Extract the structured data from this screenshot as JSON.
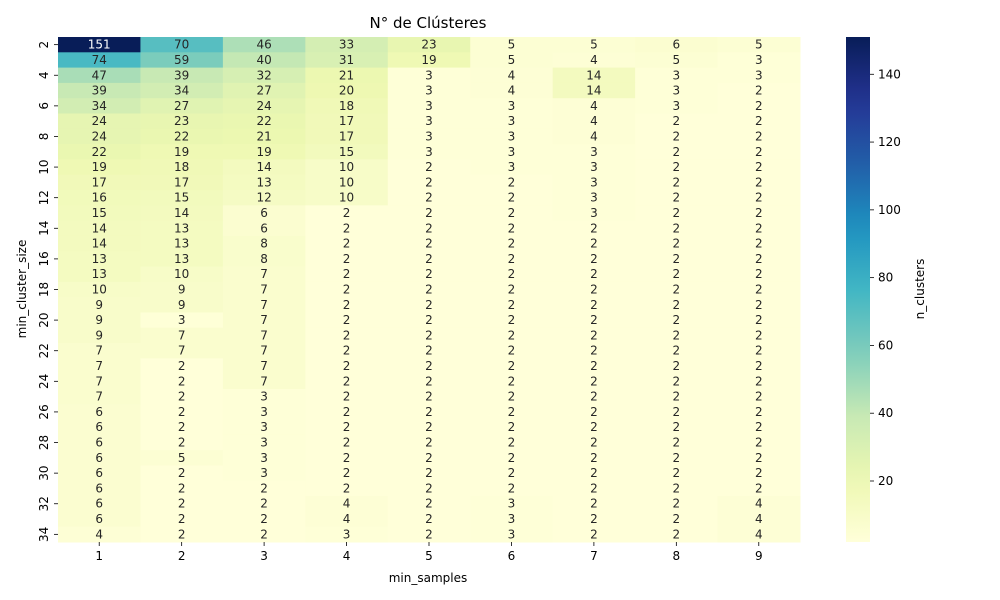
{
  "chart_data": {
    "type": "heatmap",
    "title": "N° de Clústeres",
    "xlabel": "min_samples",
    "ylabel": "min_cluster_size",
    "colorbar_label": "n_clusters",
    "colormap": "YlGnBu",
    "vmin": 2,
    "vmax": 151,
    "x_categories": [
      "1",
      "2",
      "3",
      "4",
      "5",
      "6",
      "7",
      "8",
      "9"
    ],
    "y_categories": [
      "2",
      "3",
      "4",
      "5",
      "6",
      "7",
      "8",
      "9",
      "10",
      "11",
      "12",
      "13",
      "14",
      "15",
      "16",
      "17",
      "18",
      "19",
      "20",
      "21",
      "22",
      "23",
      "24",
      "25",
      "26",
      "27",
      "28",
      "29",
      "30",
      "31",
      "32",
      "33",
      "34"
    ],
    "y_tick_labels_shown": [
      "2",
      "4",
      "6",
      "8",
      "10",
      "12",
      "14",
      "16",
      "18",
      "20",
      "22",
      "24",
      "26",
      "28",
      "30",
      "32",
      "34"
    ],
    "colorbar_ticks": [
      "20",
      "40",
      "60",
      "80",
      "100",
      "120",
      "140"
    ],
    "values": [
      [
        151,
        70,
        46,
        33,
        23,
        5,
        5,
        6,
        5
      ],
      [
        74,
        59,
        40,
        31,
        19,
        5,
        4,
        5,
        3
      ],
      [
        47,
        39,
        32,
        21,
        3,
        4,
        14,
        3,
        3
      ],
      [
        39,
        34,
        27,
        20,
        3,
        4,
        14,
        3,
        2
      ],
      [
        34,
        27,
        24,
        18,
        3,
        3,
        4,
        3,
        2
      ],
      [
        24,
        23,
        22,
        17,
        3,
        3,
        4,
        2,
        2
      ],
      [
        24,
        22,
        21,
        17,
        3,
        3,
        4,
        2,
        2
      ],
      [
        22,
        19,
        19,
        15,
        3,
        3,
        3,
        2,
        2
      ],
      [
        19,
        18,
        14,
        10,
        2,
        3,
        3,
        2,
        2
      ],
      [
        17,
        17,
        13,
        10,
        2,
        2,
        3,
        2,
        2
      ],
      [
        16,
        15,
        12,
        10,
        2,
        2,
        3,
        2,
        2
      ],
      [
        15,
        14,
        6,
        2,
        2,
        2,
        3,
        2,
        2
      ],
      [
        14,
        13,
        6,
        2,
        2,
        2,
        2,
        2,
        2
      ],
      [
        14,
        13,
        8,
        2,
        2,
        2,
        2,
        2,
        2
      ],
      [
        13,
        13,
        8,
        2,
        2,
        2,
        2,
        2,
        2
      ],
      [
        13,
        10,
        7,
        2,
        2,
        2,
        2,
        2,
        2
      ],
      [
        10,
        9,
        7,
        2,
        2,
        2,
        2,
        2,
        2
      ],
      [
        9,
        9,
        7,
        2,
        2,
        2,
        2,
        2,
        2
      ],
      [
        9,
        3,
        7,
        2,
        2,
        2,
        2,
        2,
        2
      ],
      [
        9,
        7,
        7,
        2,
        2,
        2,
        2,
        2,
        2
      ],
      [
        7,
        7,
        7,
        2,
        2,
        2,
        2,
        2,
        2
      ],
      [
        7,
        2,
        7,
        2,
        2,
        2,
        2,
        2,
        2
      ],
      [
        7,
        2,
        7,
        2,
        2,
        2,
        2,
        2,
        2
      ],
      [
        7,
        2,
        3,
        2,
        2,
        2,
        2,
        2,
        2
      ],
      [
        6,
        2,
        3,
        2,
        2,
        2,
        2,
        2,
        2
      ],
      [
        6,
        2,
        3,
        2,
        2,
        2,
        2,
        2,
        2
      ],
      [
        6,
        2,
        3,
        2,
        2,
        2,
        2,
        2,
        2
      ],
      [
        6,
        5,
        3,
        2,
        2,
        2,
        2,
        2,
        2
      ],
      [
        6,
        2,
        3,
        2,
        2,
        2,
        2,
        2,
        2
      ],
      [
        6,
        2,
        2,
        2,
        2,
        2,
        2,
        2,
        2
      ],
      [
        6,
        2,
        2,
        4,
        2,
        3,
        2,
        2,
        4
      ],
      [
        6,
        2,
        2,
        4,
        2,
        3,
        2,
        2,
        4
      ],
      [
        4,
        2,
        2,
        3,
        2,
        3,
        2,
        2,
        4
      ]
    ]
  }
}
